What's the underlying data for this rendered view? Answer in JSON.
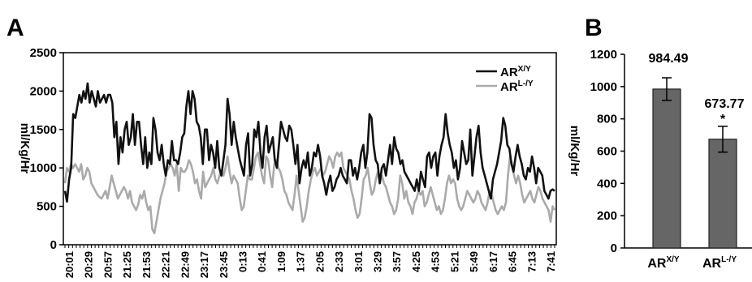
{
  "panels": {
    "a_letter": "A",
    "b_letter": "B"
  },
  "chart_data": [
    {
      "type": "line",
      "panel": "A",
      "ylabel": "ml/Kg/Hr",
      "ylim": [
        0,
        2500
      ],
      "yticks": [
        0,
        500,
        1000,
        1500,
        2000,
        2500
      ],
      "xtick_labels": [
        "20:01",
        "20:29",
        "20:57",
        "21:25",
        "21:53",
        "22:21",
        "22:49",
        "23:17",
        "23:45",
        "0:13",
        "0:41",
        "1:09",
        "1:37",
        "2:05",
        "2:33",
        "3:01",
        "3:29",
        "3:57",
        "4:25",
        "4:53",
        "5:21",
        "5:49",
        "6:17",
        "6:45",
        "7:13",
        "7:41"
      ],
      "legend_position": "top-right",
      "series": [
        {
          "name": "AR",
          "name_sup": "X/Y",
          "color": "#111111",
          "values": [
            700,
            560,
            850,
            1000,
            1700,
            1650,
            1800,
            1950,
            1850,
            2000,
            1900,
            2100,
            1850,
            2000,
            1900,
            1800,
            2000,
            1850,
            1900,
            1950,
            1850,
            1950,
            1950,
            1850,
            1400,
            1600,
            1050,
            1400,
            1200,
            1500,
            1600,
            1300,
            1400,
            1700,
            1300,
            1600,
            1600,
            1300,
            1050,
            1400,
            1000,
            1200,
            1050,
            1650,
            1500,
            1200,
            1100,
            1300,
            1050,
            900,
            1100,
            1050,
            1350,
            1100,
            1100,
            1050,
            1200,
            1400,
            1450,
            1800,
            2000,
            1700,
            2000,
            1900,
            1600,
            1550,
            1400,
            1050,
            1500,
            1500,
            1100,
            1300,
            1200,
            1000,
            1350,
            1000,
            900,
            1100,
            1300,
            1900,
            1700,
            1300,
            1600,
            1400,
            1250,
            1100,
            1000,
            900,
            1300,
            1450,
            900,
            1050,
            1500,
            1400,
            1600,
            1200,
            1000,
            1400,
            1550,
            1200,
            1300,
            1400,
            1100,
            1000,
            1300,
            1600,
            1500,
            1400,
            1350,
            1550,
            1500,
            1300,
            1050,
            1300,
            800,
            1000,
            1100,
            1000,
            1200,
            900,
            1000,
            1200,
            1150,
            1300,
            1150,
            900,
            800,
            650,
            800,
            900,
            700,
            750,
            850,
            900,
            1000,
            900,
            850,
            800,
            1100,
            1100,
            900,
            1000,
            850,
            1000,
            1200,
            1300,
            1000,
            1200,
            1700,
            1650,
            1300,
            1100,
            1050,
            800,
            1000,
            1050,
            900,
            1100,
            1300,
            1050,
            1400,
            1250,
            1200,
            1050,
            1100,
            950,
            900,
            850,
            800,
            750,
            700,
            850,
            700,
            950,
            850,
            750,
            1150,
            1200,
            1000,
            1150,
            1200,
            900,
            1150,
            1300,
            1400,
            1700,
            1450,
            1300,
            1200,
            1000,
            1100,
            850,
            1000,
            1350,
            1200,
            1050,
            1100,
            1500,
            900,
            1150,
            1400,
            1550,
            1200,
            1000,
            900,
            800,
            700,
            600,
            850,
            950,
            1050,
            1200,
            1350,
            1650,
            1550,
            1300,
            1250,
            1050,
            950,
            1150,
            1300,
            1150,
            1050,
            900,
            850,
            1000,
            950,
            1150,
            1000,
            800,
            1000,
            950,
            900,
            700,
            650,
            600,
            700,
            720,
            700
          ]
        },
        {
          "name": "AR",
          "name_sup": "L-/Y",
          "color": "#aaaaaa",
          "values": [
            800,
            1000,
            950,
            1050,
            1000,
            1050,
            1000,
            950,
            1050,
            850,
            900,
            1000,
            950,
            800,
            750,
            700,
            650,
            620,
            600,
            650,
            700,
            600,
            750,
            900,
            800,
            700,
            600,
            650,
            700,
            750,
            700,
            600,
            700,
            550,
            500,
            450,
            520,
            650,
            600,
            700,
            550,
            450,
            500,
            200,
            150,
            300,
            450,
            600,
            700,
            800,
            950,
            1000,
            1050,
            1000,
            900,
            1050,
            700,
            1000,
            950,
            950,
            1000,
            1100,
            1050,
            950,
            800,
            850,
            700,
            600,
            950,
            750,
            800,
            850,
            900,
            1000,
            850,
            800,
            900,
            950,
            900,
            1000,
            1150,
            950,
            800,
            900,
            850,
            800,
            600,
            450,
            500,
            700,
            900,
            850,
            850,
            1000,
            1150,
            1200,
            1050,
            900,
            800,
            1150,
            1100,
            900,
            750,
            1050,
            1100,
            1000,
            950,
            850,
            700,
            650,
            550,
            500,
            450,
            650,
            900,
            700,
            500,
            300,
            350,
            500,
            700,
            850,
            950,
            1000,
            900,
            950,
            1000,
            900,
            950,
            1050,
            1150,
            1100,
            1000,
            1150,
            1200,
            1150,
            1200,
            1000,
            950,
            900,
            850,
            700,
            600,
            450,
            350,
            400,
            600,
            850,
            900,
            1000,
            800,
            650,
            700,
            850,
            950,
            800,
            900,
            800,
            750,
            650,
            550,
            500,
            400,
            450,
            600,
            900,
            800,
            600,
            700,
            550,
            500,
            400,
            550,
            600,
            700,
            650,
            700,
            500,
            550,
            650,
            750,
            650,
            550,
            450,
            500,
            400,
            450,
            600,
            800,
            900,
            800,
            850,
            800,
            600,
            500,
            450,
            500,
            600,
            700,
            650,
            600,
            550,
            600,
            700,
            650,
            550,
            500,
            450,
            550,
            700,
            650,
            550,
            450,
            400,
            450,
            500,
            450,
            550,
            900,
            1150,
            1050,
            900,
            800,
            900,
            800,
            650,
            550,
            600,
            650,
            700,
            600,
            550,
            650,
            750,
            700,
            600,
            550,
            500,
            450,
            300,
            500,
            450
          ]
        }
      ]
    },
    {
      "type": "bar",
      "panel": "B",
      "ylabel": "ml/Kg/Hr",
      "ylim": [
        0,
        1200
      ],
      "yticks": [
        0,
        200,
        400,
        600,
        800,
        1000,
        1200
      ],
      "categories": [
        "AR",
        "AR"
      ],
      "categories_sup": [
        "X/Y",
        "L-/Y"
      ],
      "values": [
        984.49,
        673.77
      ],
      "value_labels": [
        "984.49",
        "673.77"
      ],
      "errors": [
        70,
        80
      ],
      "significance": [
        "",
        "*"
      ],
      "bar_color": "#666666"
    }
  ]
}
